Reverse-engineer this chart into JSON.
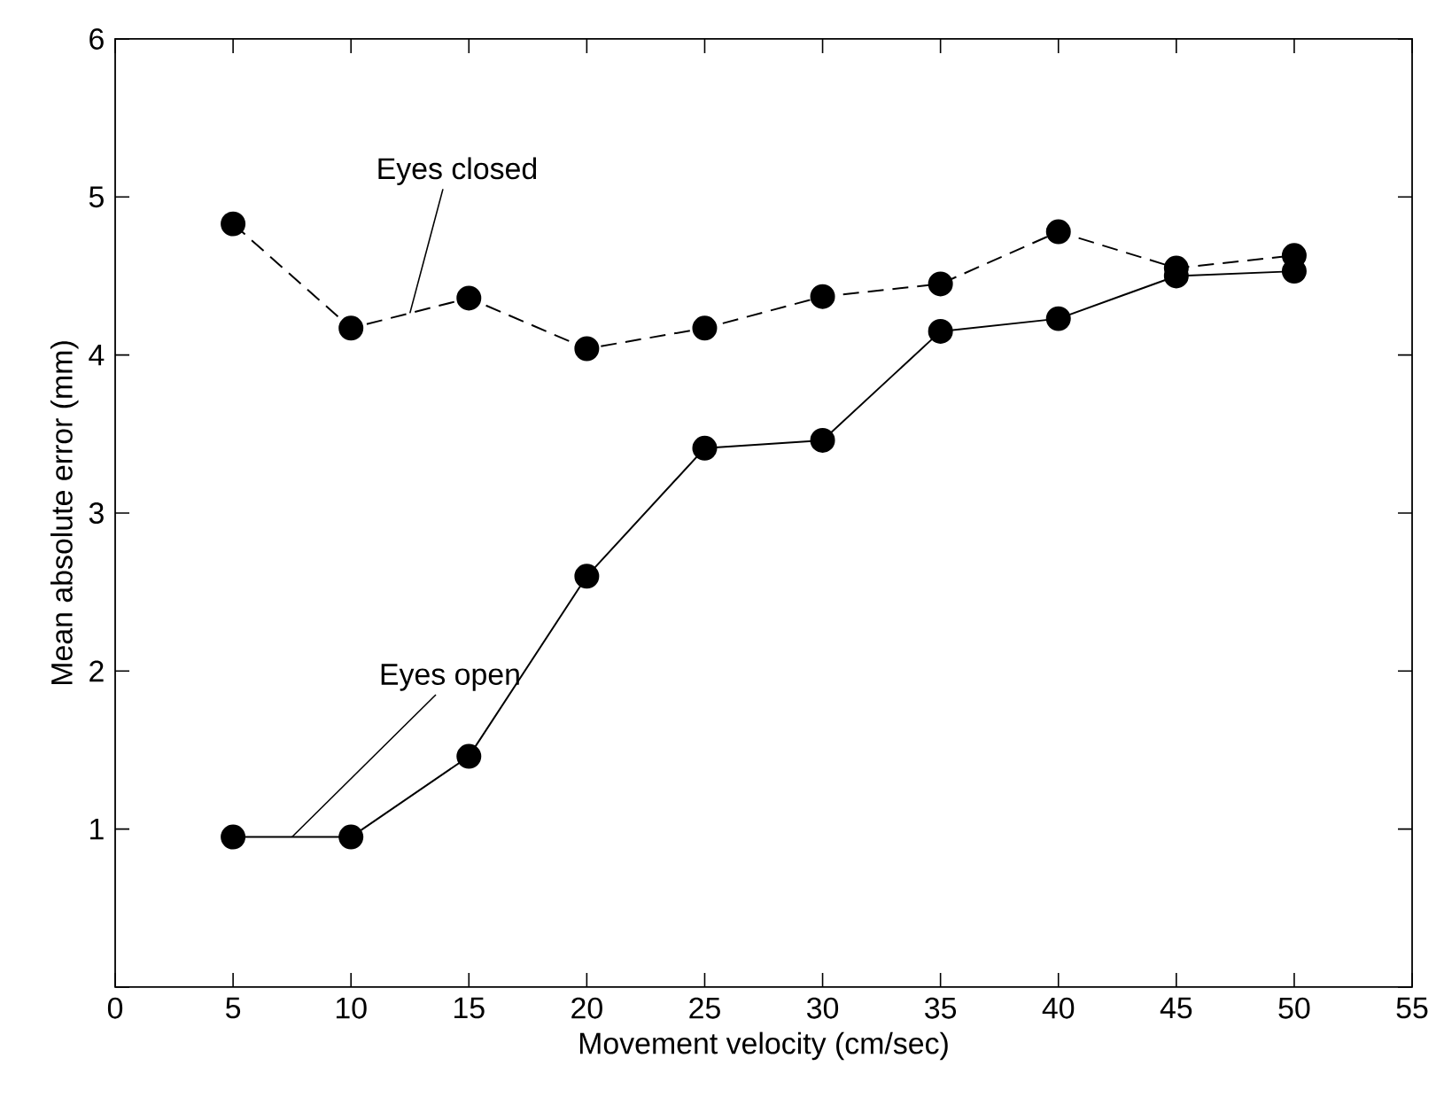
{
  "chart_data": {
    "type": "line",
    "xlabel": "Movement velocity (cm/sec)",
    "ylabel": "Mean absolute error (mm)",
    "x": [
      5,
      10,
      15,
      20,
      25,
      30,
      35,
      40,
      45,
      50
    ],
    "series": [
      {
        "name": "Eyes closed",
        "color": "#000000",
        "line_style": "dashed",
        "values": [
          4.83,
          4.17,
          4.36,
          4.04,
          4.17,
          4.37,
          4.45,
          4.78,
          4.55,
          4.63
        ]
      },
      {
        "name": "Eyes open",
        "color": "#000000",
        "line_style": "solid",
        "values": [
          0.95,
          0.95,
          1.46,
          2.6,
          3.41,
          3.46,
          4.15,
          4.23,
          4.5,
          4.53
        ]
      }
    ],
    "xlim": [
      0,
      55
    ],
    "ylim": [
      0,
      6
    ],
    "xticks": [
      0,
      5,
      10,
      15,
      20,
      25,
      30,
      35,
      40,
      45,
      50,
      55
    ],
    "yticks": [
      {
        "value": 0,
        "label": null
      },
      1,
      2,
      3,
      4,
      5,
      6
    ],
    "marker": "circle",
    "grid": false
  }
}
